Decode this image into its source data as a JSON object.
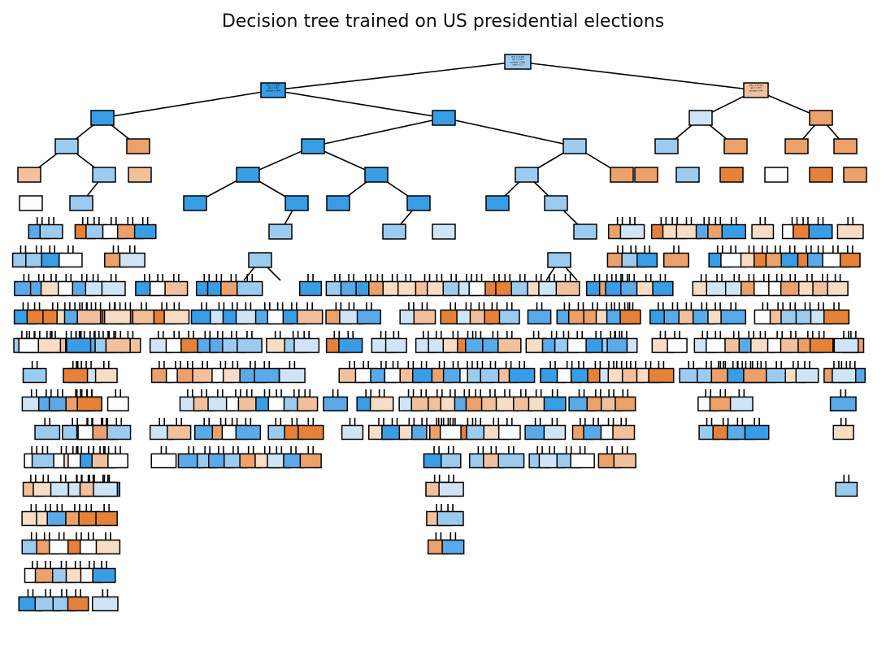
{
  "title": "Decision tree trained on US presidential elections",
  "colors": {
    "background": "#ffffff",
    "edge": "#000000",
    "node_border": "#000000",
    "class_blue": "#3b8fe3",
    "class_orange": "#e5813f"
  },
  "tree": {
    "root": {
      "fill": "light-blue",
      "lines": [
        "X[3] <= 0.487",
        "gini = 0.473",
        "samples = 1288",
        "value = [...]"
      ]
    },
    "level1": [
      {
        "fill": "blue",
        "lines": [
          "X[2] <= 0.0313",
          "gini = 0.352",
          "samples = 1044"
        ]
      },
      {
        "fill": "light-orange",
        "lines": [
          "X[3] <= 40.512",
          "gini = 0.437",
          "samples = 244"
        ]
      }
    ],
    "note": "Deep binary tree; most inner node labels are illegibly small in the source image."
  }
}
